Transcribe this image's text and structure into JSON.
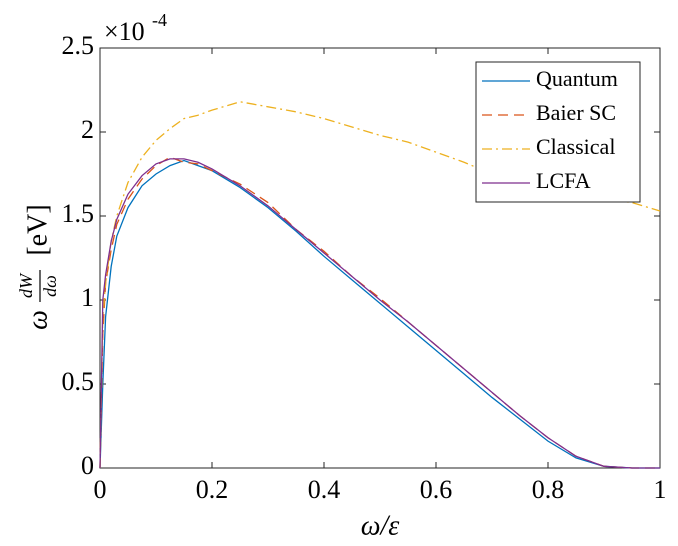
{
  "chart_data": {
    "type": "line",
    "xlabel": "ω/ε",
    "ylabel_parts": [
      "ω",
      "dW",
      "dω",
      "[eV]"
    ],
    "exponent_label": "×10",
    "exponent": "-4",
    "x": [
      0,
      0.005,
      0.01,
      0.02,
      0.03,
      0.05,
      0.075,
      0.1,
      0.125,
      0.15,
      0.175,
      0.2,
      0.25,
      0.3,
      0.35,
      0.4,
      0.45,
      0.5,
      0.55,
      0.6,
      0.65,
      0.7,
      0.75,
      0.8,
      0.85,
      0.9,
      0.95,
      1
    ],
    "series": [
      {
        "name": "Quantum",
        "color": "#0072bd",
        "linestyle": "-",
        "values": [
          0,
          0.5,
          0.9,
          1.2,
          1.38,
          1.55,
          1.68,
          1.75,
          1.8,
          1.83,
          1.8,
          1.77,
          1.67,
          1.55,
          1.41,
          1.26,
          1.12,
          0.98,
          0.84,
          0.7,
          0.56,
          0.42,
          0.29,
          0.16,
          0.06,
          0.01,
          0,
          0
        ]
      },
      {
        "name": "Baier SC",
        "color": "#d95319",
        "linestyle": "--",
        "values": [
          0,
          0.8,
          1.1,
          1.3,
          1.45,
          1.6,
          1.72,
          1.8,
          1.85,
          1.82,
          1.81,
          1.77,
          1.69,
          1.58,
          1.42,
          1.29,
          1.14,
          1.01,
          0.87,
          0.73,
          0.59,
          0.45,
          0.31,
          0.18,
          0.07,
          0.01,
          0,
          0
        ]
      },
      {
        "name": "Classical",
        "color": "#edb120",
        "linestyle": "-.",
        "values": [
          0,
          0.9,
          1.1,
          1.35,
          1.5,
          1.7,
          1.85,
          1.95,
          2.02,
          2.08,
          2.1,
          2.13,
          2.18,
          2.15,
          2.12,
          2.08,
          2.03,
          1.98,
          1.94,
          1.88,
          1.82,
          1.75,
          1.7,
          1.65,
          1.62,
          1.6,
          1.58,
          1.53
        ]
      },
      {
        "name": "LCFA",
        "color": "#7e2f8e",
        "linestyle": "-",
        "values": [
          0,
          1.0,
          1.15,
          1.35,
          1.48,
          1.63,
          1.74,
          1.81,
          1.84,
          1.84,
          1.82,
          1.78,
          1.68,
          1.56,
          1.42,
          1.28,
          1.14,
          1.0,
          0.87,
          0.73,
          0.59,
          0.45,
          0.31,
          0.18,
          0.07,
          0.01,
          0,
          0
        ]
      }
    ],
    "xlim": [
      0,
      1
    ],
    "ylim": [
      0,
      2.5
    ],
    "xticks": [
      0,
      0.2,
      0.4,
      0.6,
      0.8,
      1
    ],
    "yticks": [
      0,
      0.5,
      1,
      1.5,
      2,
      2.5
    ],
    "legend": "northeast"
  }
}
